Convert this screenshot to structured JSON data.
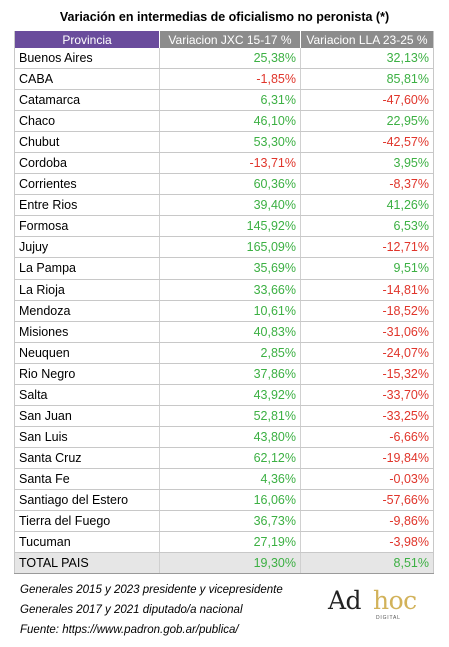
{
  "title": "Variación en intermedias de oficialismo no peronista (*)",
  "headers": {
    "provincia": "Provincia",
    "jxc": "Variacion JXC 15-17 %",
    "lla": "Variacion LLA 23-25 %"
  },
  "rows": [
    {
      "name": "Buenos Aires",
      "jxc": "25,38%",
      "lla": "32,13%",
      "jxc_sign": "pos",
      "lla_sign": "pos"
    },
    {
      "name": "CABA",
      "jxc": "-1,85%",
      "lla": "85,81%",
      "jxc_sign": "neg",
      "lla_sign": "pos"
    },
    {
      "name": "Catamarca",
      "jxc": "6,31%",
      "lla": "-47,60%",
      "jxc_sign": "pos",
      "lla_sign": "neg"
    },
    {
      "name": "Chaco",
      "jxc": "46,10%",
      "lla": "22,95%",
      "jxc_sign": "pos",
      "lla_sign": "pos"
    },
    {
      "name": "Chubut",
      "jxc": "53,30%",
      "lla": "-42,57%",
      "jxc_sign": "pos",
      "lla_sign": "neg"
    },
    {
      "name": "Cordoba",
      "jxc": "-13,71%",
      "lla": "3,95%",
      "jxc_sign": "neg",
      "lla_sign": "pos"
    },
    {
      "name": "Corrientes",
      "jxc": "60,36%",
      "lla": "-8,37%",
      "jxc_sign": "pos",
      "lla_sign": "neg"
    },
    {
      "name": "Entre Rios",
      "jxc": "39,40%",
      "lla": "41,26%",
      "jxc_sign": "pos",
      "lla_sign": "pos"
    },
    {
      "name": "Formosa",
      "jxc": "145,92%",
      "lla": "6,53%",
      "jxc_sign": "pos",
      "lla_sign": "pos"
    },
    {
      "name": "Jujuy",
      "jxc": "165,09%",
      "lla": "-12,71%",
      "jxc_sign": "pos",
      "lla_sign": "neg"
    },
    {
      "name": "La Pampa",
      "jxc": "35,69%",
      "lla": "9,51%",
      "jxc_sign": "pos",
      "lla_sign": "pos"
    },
    {
      "name": "La Rioja",
      "jxc": "33,66%",
      "lla": "-14,81%",
      "jxc_sign": "pos",
      "lla_sign": "neg"
    },
    {
      "name": "Mendoza",
      "jxc": "10,61%",
      "lla": "-18,52%",
      "jxc_sign": "pos",
      "lla_sign": "neg"
    },
    {
      "name": "Misiones",
      "jxc": "40,83%",
      "lla": "-31,06%",
      "jxc_sign": "pos",
      "lla_sign": "neg"
    },
    {
      "name": "Neuquen",
      "jxc": "2,85%",
      "lla": "-24,07%",
      "jxc_sign": "pos",
      "lla_sign": "neg"
    },
    {
      "name": "Rio Negro",
      "jxc": "37,86%",
      "lla": "-15,32%",
      "jxc_sign": "pos",
      "lla_sign": "neg"
    },
    {
      "name": "Salta",
      "jxc": "43,92%",
      "lla": "-33,70%",
      "jxc_sign": "pos",
      "lla_sign": "neg"
    },
    {
      "name": "San Juan",
      "jxc": "52,81%",
      "lla": "-33,25%",
      "jxc_sign": "pos",
      "lla_sign": "neg"
    },
    {
      "name": "San Luis",
      "jxc": "43,80%",
      "lla": "-6,66%",
      "jxc_sign": "pos",
      "lla_sign": "neg"
    },
    {
      "name": "Santa Cruz",
      "jxc": "62,12%",
      "lla": "-19,84%",
      "jxc_sign": "pos",
      "lla_sign": "neg"
    },
    {
      "name": "Santa Fe",
      "jxc": "4,36%",
      "lla": "-0,03%",
      "jxc_sign": "pos",
      "lla_sign": "neg"
    },
    {
      "name": "Santiago del Estero",
      "jxc": "16,06%",
      "lla": "-57,66%",
      "jxc_sign": "pos",
      "lla_sign": "neg"
    },
    {
      "name": "Tierra del Fuego",
      "jxc": "36,73%",
      "lla": "-9,86%",
      "jxc_sign": "pos",
      "lla_sign": "neg"
    },
    {
      "name": "Tucuman",
      "jxc": "27,19%",
      "lla": "-3,98%",
      "jxc_sign": "pos",
      "lla_sign": "neg"
    }
  ],
  "total": {
    "name": "TOTAL PAIS",
    "jxc": "19,30%",
    "lla": "8,51%",
    "jxc_sign": "pos",
    "lla_sign": "pos"
  },
  "notes": [
    "Generales 2015 y 2023 presidente y vicepresidente",
    "Generales 2017 y 2021 diputado/a nacional",
    "Fuente: https://www.padron.gob.ar/publica/"
  ],
  "logo": {
    "part1": "Ad",
    "part2": "hoc",
    "sub": "DIGITAL"
  },
  "colors": {
    "header_purple": "#6a4c9c",
    "header_gray": "#8c8c8c",
    "positive": "#3cb043",
    "negative": "#e0352b",
    "logo_gold": "#d2b25a"
  }
}
